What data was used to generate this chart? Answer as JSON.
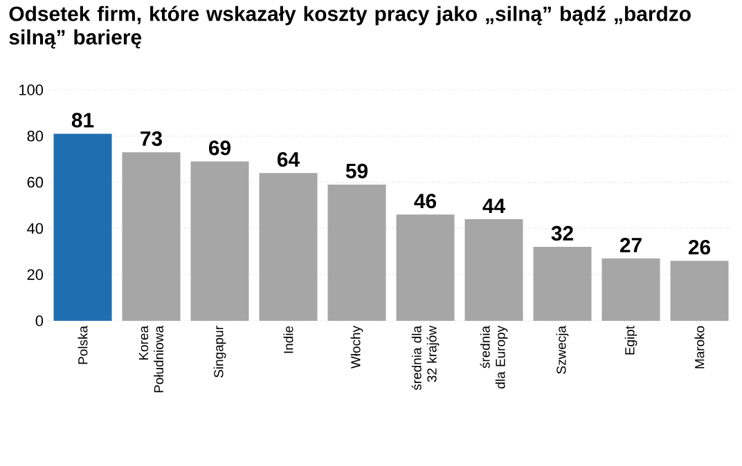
{
  "chart_data": {
    "type": "bar",
    "title": "Odsetek firm, które wskazały koszty pracy jako „silną” bądź „bardzo silną” barierę",
    "categories": [
      "Polska",
      "Korea Południowa",
      "Singapur",
      "Indie",
      "Włochy",
      "średnia dla 32 krajów",
      "średnia dla Europy",
      "Szwecja",
      "Egipt",
      "Maroko"
    ],
    "values": [
      81,
      73,
      69,
      64,
      59,
      46,
      44,
      32,
      27,
      26
    ],
    "colors": [
      "#1f6fb0",
      "#a6a6a6",
      "#a6a6a6",
      "#a6a6a6",
      "#a6a6a6",
      "#a6a6a6",
      "#a6a6a6",
      "#a6a6a6",
      "#a6a6a6",
      "#a6a6a6"
    ],
    "ylim": [
      0,
      100
    ],
    "yticks": [
      0,
      20,
      40,
      60,
      80,
      100
    ],
    "grid": "y",
    "data_labels": true
  }
}
